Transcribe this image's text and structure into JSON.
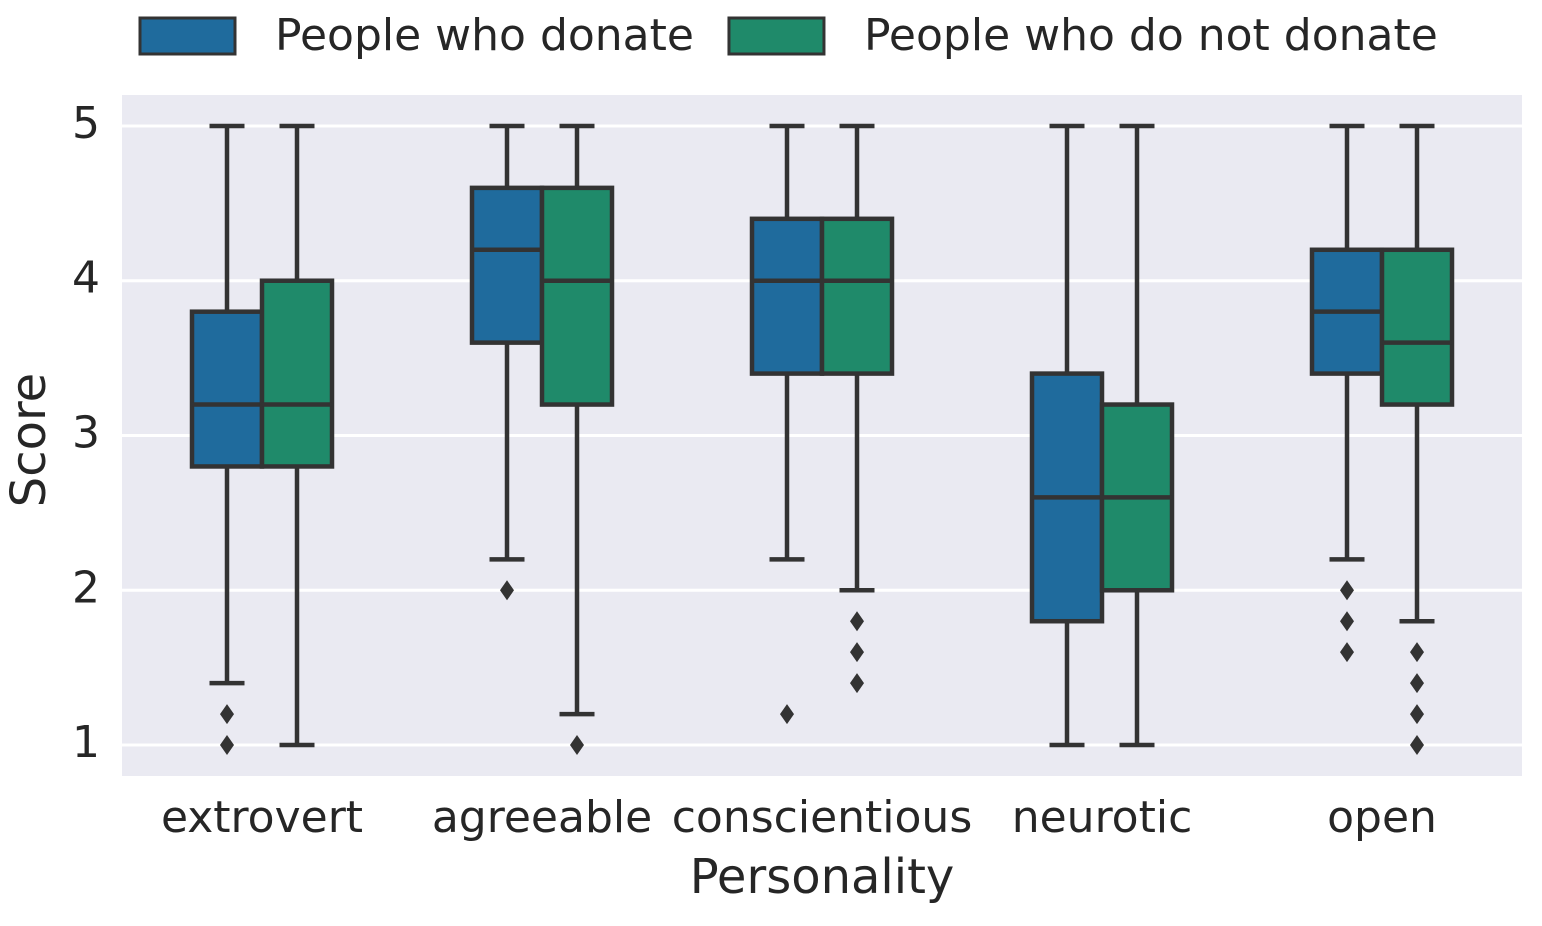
{
  "chart_data": {
    "type": "box",
    "x_label": "Personality",
    "y_label": "Score",
    "categories": [
      "extrovert",
      "agreeable",
      "conscientious",
      "neurotic",
      "open"
    ],
    "series": [
      {
        "name": "People who donate",
        "color": "#1f6b9d",
        "whisker_low": [
          1.4,
          2.2,
          2.2,
          1.0,
          2.2
        ],
        "q1": [
          2.8,
          3.6,
          3.4,
          1.8,
          3.4
        ],
        "median": [
          3.2,
          4.2,
          4.0,
          2.6,
          3.8
        ],
        "q3": [
          3.8,
          4.6,
          4.4,
          3.4,
          4.2
        ],
        "whisker_high": [
          5,
          5,
          5,
          5,
          5
        ],
        "outliers": [
          [
            1.2,
            1.0
          ],
          [
            2.0
          ],
          [
            1.2
          ],
          [],
          [
            2.0,
            1.8,
            1.6
          ]
        ]
      },
      {
        "name": "People who do not donate",
        "color": "#1f8a6a",
        "whisker_low": [
          1.0,
          1.2,
          2.0,
          1.0,
          1.8
        ],
        "q1": [
          2.8,
          3.2,
          3.4,
          2.0,
          3.2
        ],
        "median": [
          3.2,
          4.0,
          4.0,
          2.6,
          3.6
        ],
        "q3": [
          4.0,
          4.6,
          4.4,
          3.2,
          4.2
        ],
        "whisker_high": [
          5,
          5,
          5,
          5,
          5
        ],
        "outliers": [
          [],
          [
            1.0
          ],
          [
            1.8,
            1.6,
            1.4
          ],
          [],
          [
            1.6,
            1.4,
            1.2,
            1.0
          ]
        ]
      }
    ],
    "ylim": [
      0.8,
      5.2
    ],
    "yticks": [
      1,
      2,
      3,
      4,
      5
    ],
    "grid": "y",
    "legend": "top"
  }
}
